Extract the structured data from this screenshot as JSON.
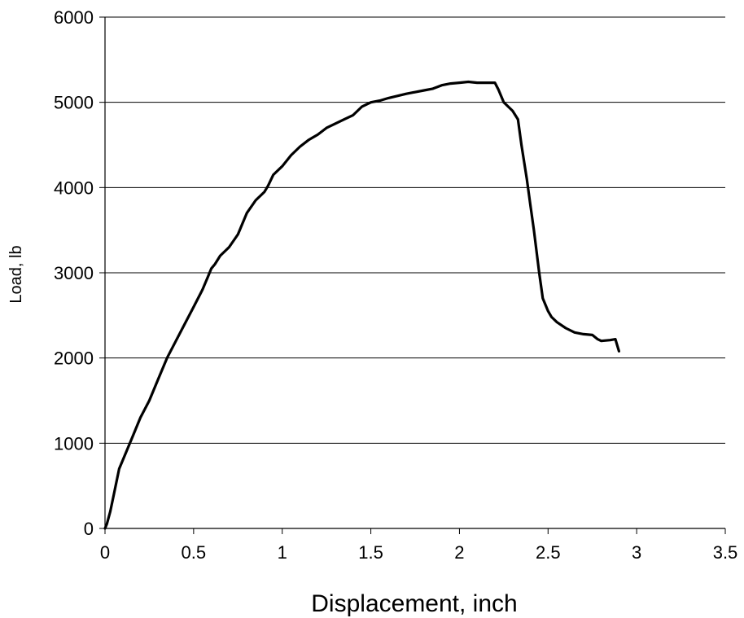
{
  "chart_data": {
    "type": "line",
    "title": "",
    "xlabel": "Displacement, inch",
    "ylabel": "Load, lb",
    "xlim": [
      0,
      3.5
    ],
    "ylim": [
      0,
      6000
    ],
    "x_ticks": [
      "0",
      "0.5",
      "1",
      "1.5",
      "2",
      "2.5",
      "3",
      "3.5"
    ],
    "y_ticks": [
      "0",
      "1000",
      "2000",
      "3000",
      "4000",
      "5000",
      "6000"
    ],
    "grid": "horizontal",
    "legend": "none",
    "line_color": "#000000",
    "series": [
      {
        "x": [
          0.0,
          0.01,
          0.03,
          0.05,
          0.08,
          0.1,
          0.15,
          0.2,
          0.25,
          0.3,
          0.35,
          0.4,
          0.45,
          0.5,
          0.55,
          0.58,
          0.6,
          0.62,
          0.65,
          0.7,
          0.75,
          0.8,
          0.85,
          0.9,
          0.92,
          0.95,
          1.0,
          1.05,
          1.1,
          1.15,
          1.2,
          1.25,
          1.3,
          1.35,
          1.4,
          1.45,
          1.5,
          1.55,
          1.6,
          1.7,
          1.8,
          1.85,
          1.9,
          1.95,
          2.0,
          2.05,
          2.1,
          2.15,
          2.2,
          2.22,
          2.25,
          2.3,
          2.33,
          2.35,
          2.38,
          2.4,
          2.42,
          2.45,
          2.47,
          2.5,
          2.52,
          2.55,
          2.6,
          2.65,
          2.7,
          2.75,
          2.78,
          2.8,
          2.85,
          2.88,
          2.89,
          2.9
        ],
        "y": [
          0,
          50,
          200,
          400,
          700,
          800,
          1050,
          1300,
          1500,
          1750,
          2000,
          2200,
          2400,
          2600,
          2800,
          2950,
          3050,
          3100,
          3200,
          3300,
          3450,
          3700,
          3850,
          3950,
          4020,
          4150,
          4250,
          4380,
          4480,
          4560,
          4620,
          4700,
          4750,
          4800,
          4850,
          4950,
          5000,
          5020,
          5050,
          5100,
          5140,
          5160,
          5200,
          5220,
          5230,
          5240,
          5230,
          5230,
          5230,
          5150,
          5000,
          4900,
          4800,
          4500,
          4100,
          3800,
          3500,
          3000,
          2700,
          2550,
          2480,
          2420,
          2350,
          2300,
          2280,
          2270,
          2220,
          2200,
          2210,
          2220,
          2150,
          2080
        ]
      }
    ]
  }
}
